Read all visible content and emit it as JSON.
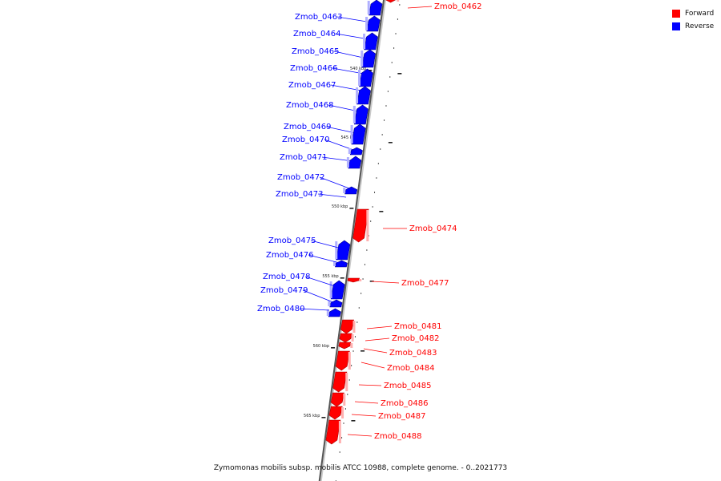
{
  "legend": {
    "forward": {
      "label": "Forward",
      "color": "#ff0000"
    },
    "reverse": {
      "label": "Reverse",
      "color": "#0000ff"
    }
  },
  "caption": "Zymomonas mobilis subsp. mobilis ATCC 10988, complete genome. - 0..2021773",
  "tick_labels": [
    "540 kbp",
    "545 kbp",
    "550 kbp",
    "555 kbp",
    "560 kbp",
    "565 kbp"
  ],
  "genes": [
    {
      "name": "Zmob_0462",
      "strand": "forward"
    },
    {
      "name": "Zmob_0463",
      "strand": "reverse"
    },
    {
      "name": "Zmob_0464",
      "strand": "reverse"
    },
    {
      "name": "Zmob_0465",
      "strand": "reverse"
    },
    {
      "name": "Zmob_0466",
      "strand": "reverse"
    },
    {
      "name": "Zmob_0467",
      "strand": "reverse"
    },
    {
      "name": "Zmob_0468",
      "strand": "reverse"
    },
    {
      "name": "Zmob_0469",
      "strand": "reverse"
    },
    {
      "name": "Zmob_0470",
      "strand": "reverse"
    },
    {
      "name": "Zmob_0471",
      "strand": "reverse"
    },
    {
      "name": "Zmob_0472",
      "strand": "reverse"
    },
    {
      "name": "Zmob_0473",
      "strand": "reverse"
    },
    {
      "name": "Zmob_0474",
      "strand": "forward"
    },
    {
      "name": "Zmob_0475",
      "strand": "reverse"
    },
    {
      "name": "Zmob_0476",
      "strand": "reverse"
    },
    {
      "name": "Zmob_0477",
      "strand": "forward"
    },
    {
      "name": "Zmob_0478",
      "strand": "reverse"
    },
    {
      "name": "Zmob_0479",
      "strand": "reverse"
    },
    {
      "name": "Zmob_0480",
      "strand": "reverse"
    },
    {
      "name": "Zmob_0481",
      "strand": "forward"
    },
    {
      "name": "Zmob_0482",
      "strand": "forward"
    },
    {
      "name": "Zmob_0483",
      "strand": "forward"
    },
    {
      "name": "Zmob_0484",
      "strand": "forward"
    },
    {
      "name": "Zmob_0485",
      "strand": "forward"
    },
    {
      "name": "Zmob_0486",
      "strand": "forward"
    },
    {
      "name": "Zmob_0487",
      "strand": "forward"
    },
    {
      "name": "Zmob_0488",
      "strand": "forward"
    }
  ]
}
